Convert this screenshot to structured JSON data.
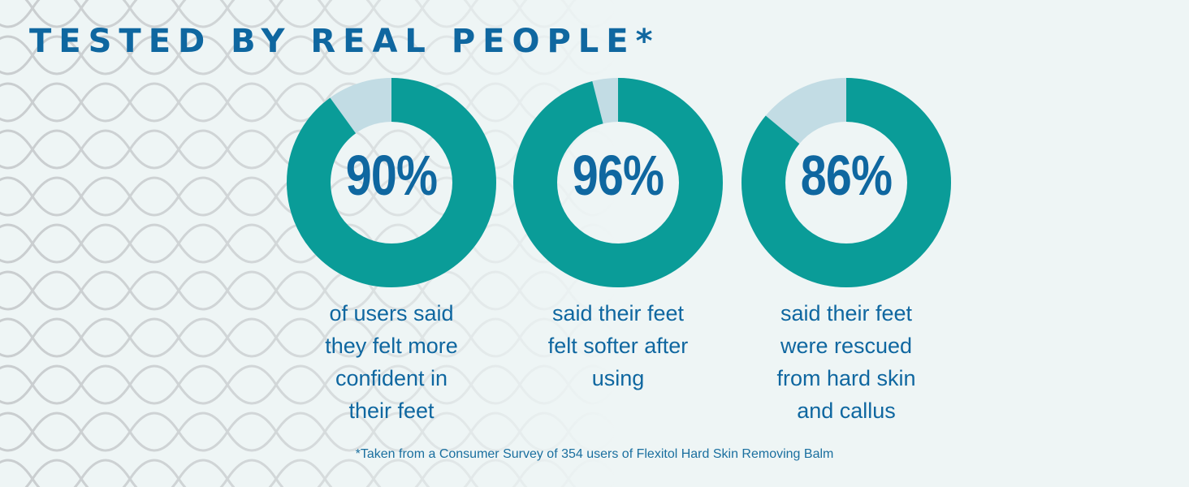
{
  "title": "TESTED BY REAL PEOPLE*",
  "colors": {
    "ring_filled": "#0a9c98",
    "ring_remaining": "#c2dce4",
    "text": "#0f67a0",
    "background": "#eef5f5"
  },
  "chart_data": {
    "type": "pie",
    "variant": "donut",
    "items": [
      {
        "value": 90,
        "label": "90%",
        "caption": "of users said\nthey felt more\nconfident in\ntheir feet"
      },
      {
        "value": 96,
        "label": "96%",
        "caption": "said their feet\nfelt softer after\nusing"
      },
      {
        "value": 86,
        "label": "86%",
        "caption": "said their feet\nwere rescued\nfrom hard skin\nand callus"
      }
    ]
  },
  "footnote": "*Taken from a Consumer Survey of 354 users of Flexitol Hard Skin Removing Balm"
}
